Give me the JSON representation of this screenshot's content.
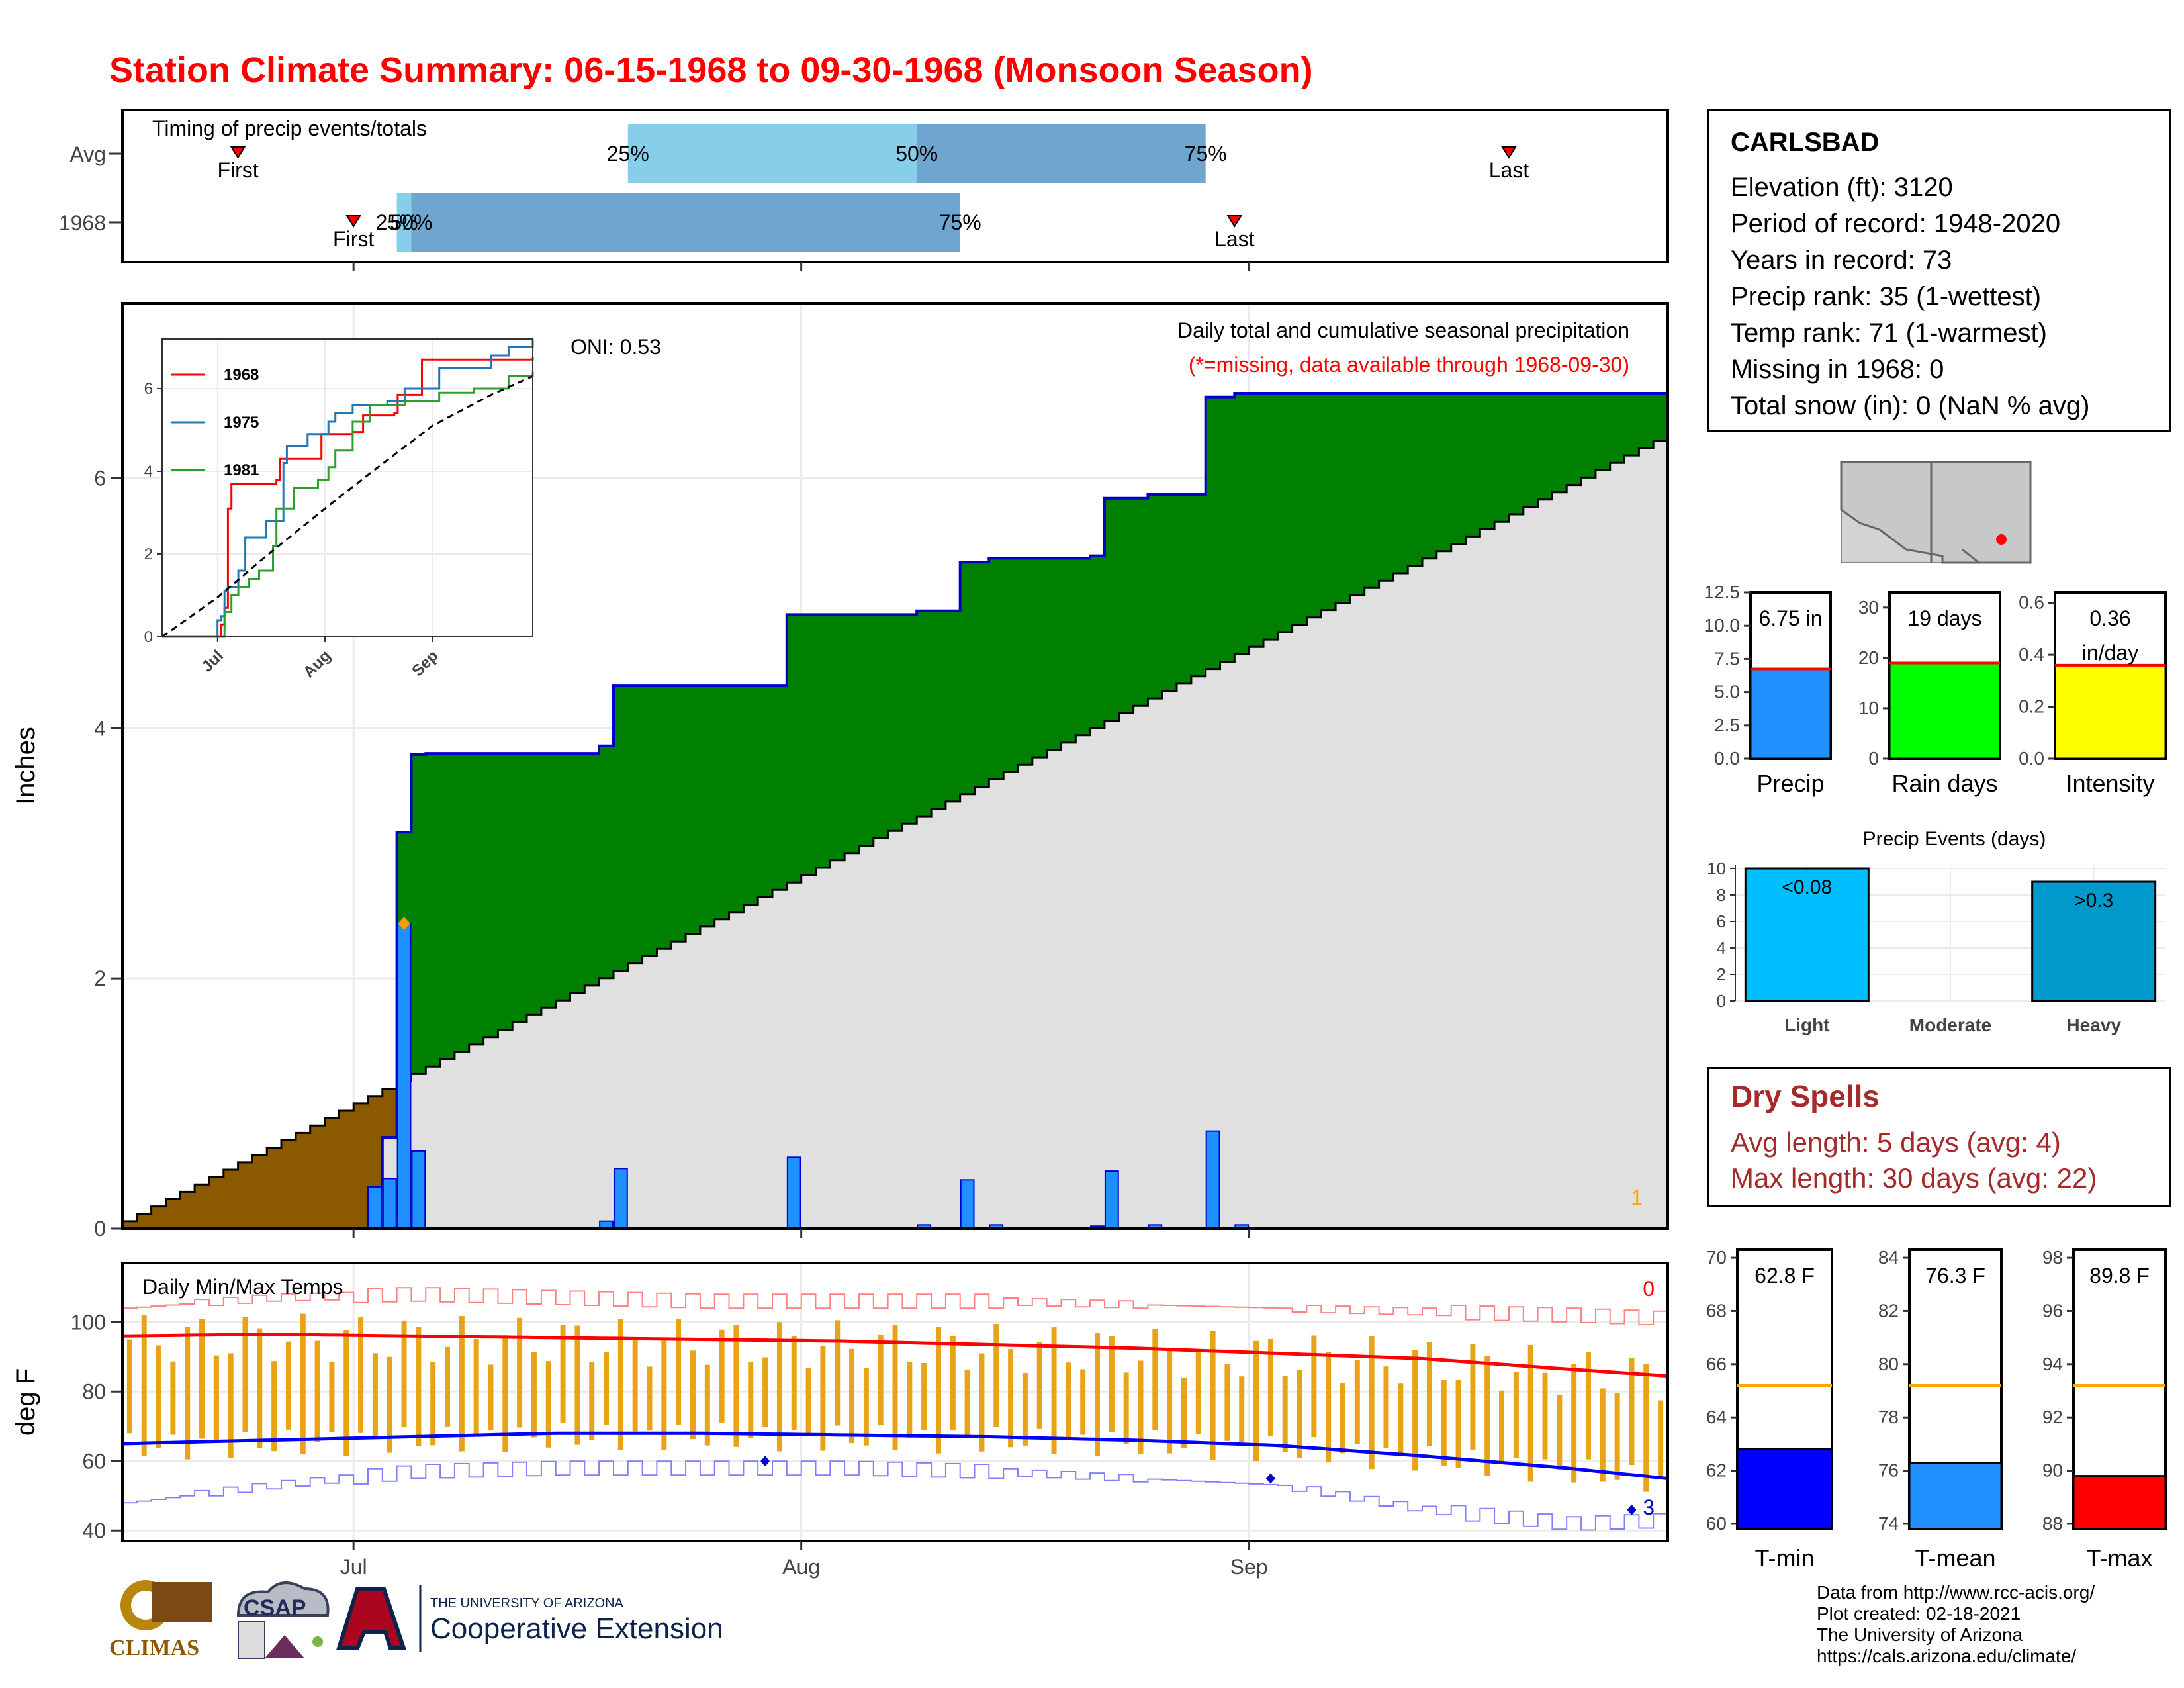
{
  "title": "Station Climate Summary: 06-15-1968 to 09-30-1968 (Monsoon Season)",
  "station": {
    "name": "CARLSBAD",
    "lines": [
      "Elevation (ft): 3120",
      "Period of record: 1948-2020",
      "Years in record: 73",
      "Precip rank: 35 (1-wettest)",
      "Temp rank: 71 (1-warmest)",
      "Missing in 1968: 0",
      "Total snow (in): 0 (NaN % avg)"
    ]
  },
  "dry_spells": {
    "title": "Dry Spells",
    "lines": [
      "Avg length: 5 days (avg: 4)",
      "Max length: 30 days (avg: 22)"
    ]
  },
  "credits": [
    "Data from http://www.rcc-acis.org/",
    "Plot created: 02-18-2021",
    "The University of Arizona",
    "https://cals.arizona.edu/climate/"
  ],
  "logos": {
    "climas": "CLIMAS",
    "csap": "CSAP",
    "ua_small": "THE UNIVERSITY OF ARIZONA",
    "ua_big": "Cooperative Extension"
  },
  "colors": {
    "title": "#ff0000",
    "precip_bar": "#1e90ff",
    "surplus": "#008000",
    "deficit": "#8b5a00",
    "normal_fill": "#e0e0e0",
    "temp_bar": "#e8a317",
    "tmax_avg": "#ff0000",
    "tmin_avg": "#0000ff"
  },
  "chart_data": [
    {
      "id": "timing",
      "type": "bar",
      "title": "Timing of precip events/totals",
      "categories": [
        "Avg",
        "1968"
      ],
      "x_domain_days": [
        0,
        107
      ],
      "rows": [
        {
          "label": "Avg",
          "first_day": 8,
          "q25_day": 35,
          "q50_day": 55,
          "q75_day": 75,
          "last_day": 96,
          "first_label": "First",
          "last_label": "Last",
          "q25_label": "25%",
          "q50_label": "50%",
          "q75_label": "75%"
        },
        {
          "label": "1968",
          "first_day": 16,
          "q25_day": 19,
          "q50_day": 20,
          "q75_day": 58,
          "last_day": 77,
          "first_label": "First",
          "last_label": "Last",
          "q25_label": "25%",
          "q50_label": "50%",
          "q75_label": "75%"
        }
      ]
    },
    {
      "id": "precip",
      "type": "area",
      "title": "Daily total and cumulative seasonal precipitation",
      "subtitle": "(*=missing, data available through 1968-09-30)",
      "ylabel": "Inches",
      "ylim": [
        0,
        7.4
      ],
      "yticks": [
        0,
        2,
        4,
        6
      ],
      "x_ticks": [
        {
          "label": "Jul",
          "day": 16
        },
        {
          "label": "Aug",
          "day": 47
        },
        {
          "label": "Sep",
          "day": 78
        }
      ],
      "x_domain_days": [
        0,
        107
      ],
      "oni_label": "ONI: 0.53",
      "corner_label": "1",
      "max_marker": {
        "day": 19,
        "value": 2.44
      },
      "normal_end_value": 6.3,
      "daily": [
        {
          "day": 17,
          "value": 0.33
        },
        {
          "day": 18,
          "value": 0.4
        },
        {
          "day": 19,
          "value": 2.44
        },
        {
          "day": 20,
          "value": 0.62
        },
        {
          "day": 21,
          "value": 0.01
        },
        {
          "day": 33,
          "value": 0.06
        },
        {
          "day": 34,
          "value": 0.48
        },
        {
          "day": 46,
          "value": 0.57
        },
        {
          "day": 55,
          "value": 0.03
        },
        {
          "day": 58,
          "value": 0.39
        },
        {
          "day": 60,
          "value": 0.03
        },
        {
          "day": 67,
          "value": 0.02
        },
        {
          "day": 68,
          "value": 0.46
        },
        {
          "day": 71,
          "value": 0.03
        },
        {
          "day": 75,
          "value": 0.78
        },
        {
          "day": 77,
          "value": 0.03
        }
      ],
      "series": [
        {
          "name": "Cumulative 1968",
          "total": 6.75
        },
        {
          "name": "Cumulative normal",
          "total": 6.3
        }
      ]
    },
    {
      "id": "inset",
      "type": "line",
      "ylim": [
        0,
        7.2
      ],
      "yticks": [
        0,
        2,
        4,
        6
      ],
      "x_ticks": [
        {
          "label": "Jul",
          "day": 16
        },
        {
          "label": "Aug",
          "day": 47
        },
        {
          "label": "Sep",
          "day": 78
        }
      ],
      "x_domain_days": [
        0,
        107
      ],
      "series": [
        {
          "name": "1968",
          "color": "#ff0000",
          "points": [
            [
              0,
              0
            ],
            [
              16,
              0
            ],
            [
              17,
              0.3
            ],
            [
              18,
              0.7
            ],
            [
              19,
              3.1
            ],
            [
              20,
              3.7
            ],
            [
              33,
              3.8
            ],
            [
              34,
              4.3
            ],
            [
              46,
              4.9
            ],
            [
              55,
              4.95
            ],
            [
              58,
              5.35
            ],
            [
              67,
              5.4
            ],
            [
              68,
              5.85
            ],
            [
              75,
              6.7
            ],
            [
              107,
              6.75
            ]
          ]
        },
        {
          "name": "1975",
          "color": "#1f77b4",
          "points": [
            [
              0,
              0
            ],
            [
              15,
              0
            ],
            [
              16,
              0.4
            ],
            [
              17,
              0.5
            ],
            [
              18,
              1.1
            ],
            [
              19,
              1.2
            ],
            [
              22,
              1.6
            ],
            [
              24,
              2.4
            ],
            [
              30,
              2.8
            ],
            [
              35,
              4.2
            ],
            [
              36,
              4.6
            ],
            [
              42,
              4.9
            ],
            [
              48,
              5.2
            ],
            [
              50,
              5.4
            ],
            [
              55,
              5.6
            ],
            [
              65,
              5.7
            ],
            [
              70,
              6.0
            ],
            [
              80,
              6.5
            ],
            [
              95,
              6.8
            ],
            [
              100,
              7.0
            ],
            [
              107,
              7.2
            ]
          ]
        },
        {
          "name": "1981",
          "color": "#2ca02c",
          "points": [
            [
              0,
              0
            ],
            [
              16,
              0
            ],
            [
              18,
              0.6
            ],
            [
              20,
              1.0
            ],
            [
              22,
              1.2
            ],
            [
              25,
              1.4
            ],
            [
              28,
              1.6
            ],
            [
              32,
              2.2
            ],
            [
              33,
              3.1
            ],
            [
              38,
              3.6
            ],
            [
              45,
              3.8
            ],
            [
              48,
              4.1
            ],
            [
              50,
              4.5
            ],
            [
              55,
              5.2
            ],
            [
              60,
              5.6
            ],
            [
              70,
              5.7
            ],
            [
              80,
              5.9
            ],
            [
              90,
              6.0
            ],
            [
              100,
              6.3
            ],
            [
              107,
              6.4
            ]
          ]
        },
        {
          "name": "Normal",
          "color": "#000000",
          "dashed": true,
          "points": [
            [
              0,
              0
            ],
            [
              16,
              0.95
            ],
            [
              30,
              1.95
            ],
            [
              47,
              3.1
            ],
            [
              60,
              3.95
            ],
            [
              78,
              5.1
            ],
            [
              95,
              5.85
            ],
            [
              107,
              6.3
            ]
          ]
        }
      ]
    },
    {
      "id": "temps",
      "type": "bar",
      "title": "Daily Min/Max Temps",
      "ylabel": "deg F",
      "ylim": [
        37,
        117
      ],
      "yticks": [
        40,
        60,
        80,
        100
      ],
      "x_ticks": [
        {
          "label": "Jul",
          "day": 16
        },
        {
          "label": "Aug",
          "day": 47
        },
        {
          "label": "Sep",
          "day": 78
        }
      ],
      "x_domain_days": [
        0,
        107
      ],
      "count_top": "0",
      "count_bottom": "3",
      "avg_max": [
        [
          0,
          96
        ],
        [
          10,
          96.5
        ],
        [
          20,
          96
        ],
        [
          30,
          95.5
        ],
        [
          40,
          95
        ],
        [
          50,
          94.5
        ],
        [
          60,
          93.5
        ],
        [
          70,
          92.5
        ],
        [
          80,
          91
        ],
        [
          90,
          89.5
        ],
        [
          100,
          86.5
        ],
        [
          107,
          84.5
        ]
      ],
      "avg_min": [
        [
          0,
          65
        ],
        [
          10,
          66
        ],
        [
          20,
          67
        ],
        [
          30,
          68
        ],
        [
          40,
          68
        ],
        [
          50,
          67.5
        ],
        [
          60,
          67
        ],
        [
          70,
          66
        ],
        [
          80,
          64.5
        ],
        [
          90,
          61.5
        ],
        [
          100,
          58
        ],
        [
          107,
          55
        ]
      ],
      "record_max": [
        [
          0,
          104
        ],
        [
          10,
          107
        ],
        [
          20,
          108
        ],
        [
          30,
          107
        ],
        [
          40,
          106
        ],
        [
          50,
          106
        ],
        [
          60,
          106
        ],
        [
          70,
          105
        ],
        [
          80,
          104
        ],
        [
          90,
          103
        ],
        [
          100,
          102
        ],
        [
          107,
          101
        ]
      ],
      "record_min": [
        [
          0,
          48
        ],
        [
          10,
          53
        ],
        [
          20,
          57
        ],
        [
          30,
          58
        ],
        [
          40,
          58
        ],
        [
          50,
          58
        ],
        [
          60,
          57
        ],
        [
          70,
          55
        ],
        [
          80,
          53
        ],
        [
          90,
          46
        ],
        [
          100,
          42
        ],
        [
          107,
          43
        ]
      ],
      "low_markers": [
        {
          "day": 44,
          "value": 60
        },
        {
          "day": 79,
          "value": 55
        },
        {
          "day": 104,
          "value": 46
        }
      ]
    },
    {
      "id": "precip-gauge",
      "type": "bar",
      "categories": [
        "Precip"
      ],
      "values": [
        6.75
      ],
      "avg": 6.75,
      "value_label": "6.75 in",
      "ylim": [
        0,
        12.5
      ],
      "yticks": [
        "0.0",
        "2.5",
        "5.0",
        "7.5",
        "10.0",
        "12.5"
      ],
      "color": "#1e90ff"
    },
    {
      "id": "raindays-gauge",
      "type": "bar",
      "categories": [
        "Rain days"
      ],
      "values": [
        19
      ],
      "avg": 19,
      "value_label": "19 days",
      "ylim": [
        0,
        33
      ],
      "yticks": [
        "0",
        "10",
        "20",
        "30"
      ],
      "color": "#00ff00"
    },
    {
      "id": "intensity-gauge",
      "type": "bar",
      "categories": [
        "Intensity"
      ],
      "values": [
        0.36
      ],
      "avg": 0.36,
      "value_label": "0.36",
      "value_label2": "in/day",
      "ylim": [
        0,
        0.64
      ],
      "yticks": [
        "0.0",
        "0.2",
        "0.4",
        "0.6"
      ],
      "color": "#ffff00"
    },
    {
      "id": "events",
      "type": "bar",
      "title": "Precip Events (days)",
      "categories": [
        "Light",
        "Moderate",
        "Heavy"
      ],
      "values": [
        10,
        0,
        9
      ],
      "bar_labels": [
        "<0.08",
        "",
        ">0.3"
      ],
      "colors": [
        "#00bfff",
        "#1e90ff",
        "#0099cc"
      ],
      "ylim": [
        0,
        10.3
      ],
      "yticks": [
        "0",
        "2",
        "4",
        "6",
        "8",
        "10"
      ]
    },
    {
      "id": "tmin-gauge",
      "type": "bar",
      "categories": [
        "T-min"
      ],
      "values": [
        62.8
      ],
      "avg": 65.2,
      "value_label": "62.8 F",
      "ylim": [
        59.8,
        70.3
      ],
      "yticks": [
        "60",
        "62",
        "64",
        "66",
        "68",
        "70"
      ],
      "color": "#0000ff"
    },
    {
      "id": "tmean-gauge",
      "type": "bar",
      "categories": [
        "T-mean"
      ],
      "values": [
        76.3
      ],
      "avg": 79.2,
      "value_label": "76.3 F",
      "ylim": [
        73.8,
        84.3
      ],
      "yticks": [
        "74",
        "76",
        "78",
        "80",
        "82",
        "84"
      ],
      "color": "#1e90ff"
    },
    {
      "id": "tmax-gauge",
      "type": "bar",
      "categories": [
        "T-max"
      ],
      "values": [
        89.8
      ],
      "avg": 93.2,
      "value_label": "89.8 F",
      "ylim": [
        87.8,
        98.3
      ],
      "yticks": [
        "88",
        "90",
        "92",
        "94",
        "96",
        "98"
      ],
      "color": "#ff0000"
    }
  ]
}
